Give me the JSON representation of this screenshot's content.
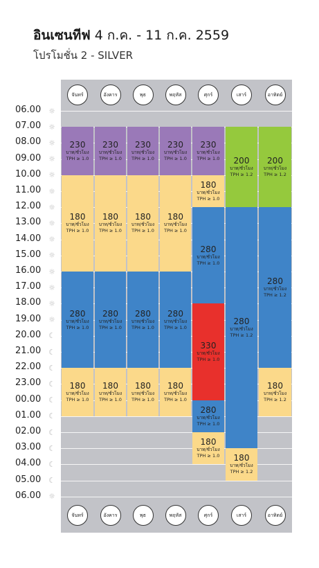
{
  "header": {
    "title_bold": "อินเซนทีฟ",
    "title_rest": " 4 ก.ค. - 11 ก.ค. 2559",
    "subtitle": "โปรโมชั่น 2 - SILVER"
  },
  "days": [
    "จันทร์",
    "อังคาร",
    "พุธ",
    "พฤหัส",
    "ศุกร์",
    "เสาร์",
    "อาทิตย์"
  ],
  "hours": [
    "06.00",
    "07.00",
    "08.00",
    "09.00",
    "10.00",
    "11.00",
    "12.00",
    "13.00",
    "14.00",
    "15.00",
    "16.00",
    "17.00",
    "18.00",
    "19.00",
    "20.00",
    "21.00",
    "22.00",
    "23.00",
    "00.00",
    "01.00",
    "02.00",
    "03.00",
    "04.00",
    "05.00",
    "06.00"
  ],
  "hour_icons": [
    "sun",
    "sun",
    "sun",
    "sun",
    "sun",
    "sun",
    "sun",
    "sun",
    "sun",
    "sun",
    "sun",
    "sun",
    "sun",
    "sun",
    "moon",
    "moon",
    "moon",
    "moon",
    "moon",
    "moon",
    "moon",
    "moon",
    "moon",
    "moon",
    "sun"
  ],
  "colors": {
    "purple": "#9a79b8",
    "yellow": "#fbd98a",
    "blue": "#3f84c8",
    "green": "#95c93d",
    "red": "#e8302c",
    "grid": "#c2c3c8"
  },
  "unit_label": "บาท/ชั่วโมง",
  "blocks": [
    {
      "day": 0,
      "start": 1,
      "end": 4,
      "price": "230",
      "tph": "TPH ≥ 1.0",
      "color": "purple"
    },
    {
      "day": 1,
      "start": 1,
      "end": 4,
      "price": "230",
      "tph": "TPH ≥ 1.0",
      "color": "purple"
    },
    {
      "day": 2,
      "start": 1,
      "end": 4,
      "price": "230",
      "tph": "TPH ≥ 1.0",
      "color": "purple"
    },
    {
      "day": 3,
      "start": 1,
      "end": 4,
      "price": "230",
      "tph": "TPH ≥ 1.0",
      "color": "purple"
    },
    {
      "day": 4,
      "start": 1,
      "end": 4,
      "price": "230",
      "tph": "TPH ≥ 1.0",
      "color": "purple"
    },
    {
      "day": 5,
      "start": 1,
      "end": 6,
      "price": "200",
      "tph": "TPH ≥ 1.2",
      "color": "green"
    },
    {
      "day": 6,
      "start": 1,
      "end": 6,
      "price": "200",
      "tph": "TPH ≥ 1.2",
      "color": "green"
    },
    {
      "day": 0,
      "start": 4,
      "end": 10,
      "price": "180",
      "tph": "TPH ≥ 1.0",
      "color": "yellow"
    },
    {
      "day": 1,
      "start": 4,
      "end": 10,
      "price": "180",
      "tph": "TPH ≥ 1.0",
      "color": "yellow"
    },
    {
      "day": 2,
      "start": 4,
      "end": 10,
      "price": "180",
      "tph": "TPH ≥ 1.0",
      "color": "yellow"
    },
    {
      "day": 3,
      "start": 4,
      "end": 10,
      "price": "180",
      "tph": "TPH ≥ 1.0",
      "color": "yellow"
    },
    {
      "day": 4,
      "start": 4,
      "end": 6,
      "price": "180",
      "tph": "TPH ≥ 1.0",
      "color": "yellow"
    },
    {
      "day": 4,
      "start": 6,
      "end": 12,
      "price": "280",
      "tph": "TPH ≥ 1.0",
      "color": "blue"
    },
    {
      "day": 5,
      "start": 6,
      "end": 21,
      "price": "280",
      "tph": "TPH ≥ 1.2",
      "color": "blue"
    },
    {
      "day": 6,
      "start": 6,
      "end": 16,
      "price": "280",
      "tph": "TPH ≥ 1.2",
      "color": "blue"
    },
    {
      "day": 0,
      "start": 10,
      "end": 16,
      "price": "280",
      "tph": "TPH ≥ 1.0",
      "color": "blue"
    },
    {
      "day": 1,
      "start": 10,
      "end": 16,
      "price": "280",
      "tph": "TPH ≥ 1.0",
      "color": "blue"
    },
    {
      "day": 2,
      "start": 10,
      "end": 16,
      "price": "280",
      "tph": "TPH ≥ 1.0",
      "color": "blue"
    },
    {
      "day": 3,
      "start": 10,
      "end": 16,
      "price": "280",
      "tph": "TPH ≥ 1.0",
      "color": "blue"
    },
    {
      "day": 4,
      "start": 12,
      "end": 18,
      "price": "330",
      "tph": "TPH ≥ 1.0",
      "color": "red"
    },
    {
      "day": 4,
      "start": 18,
      "end": 20,
      "price": "280",
      "tph": "TPH ≥ 1.0",
      "color": "blue"
    },
    {
      "day": 0,
      "start": 16,
      "end": 19,
      "price": "180",
      "tph": "TPH ≥ 1.0",
      "color": "yellow"
    },
    {
      "day": 1,
      "start": 16,
      "end": 19,
      "price": "180",
      "tph": "TPH ≥ 1.0",
      "color": "yellow"
    },
    {
      "day": 2,
      "start": 16,
      "end": 19,
      "price": "180",
      "tph": "TPH ≥ 1.0",
      "color": "yellow"
    },
    {
      "day": 3,
      "start": 16,
      "end": 19,
      "price": "180",
      "tph": "TPH ≥ 1.0",
      "color": "yellow"
    },
    {
      "day": 6,
      "start": 16,
      "end": 19,
      "price": "180",
      "tph": "TPH ≥ 1.2",
      "color": "yellow"
    },
    {
      "day": 4,
      "start": 20,
      "end": 22,
      "price": "180",
      "tph": "TPH ≥ 1.0",
      "color": "yellow"
    },
    {
      "day": 5,
      "start": 21,
      "end": 23,
      "price": "180",
      "tph": "TPH ≥ 1.2",
      "color": "yellow"
    }
  ]
}
